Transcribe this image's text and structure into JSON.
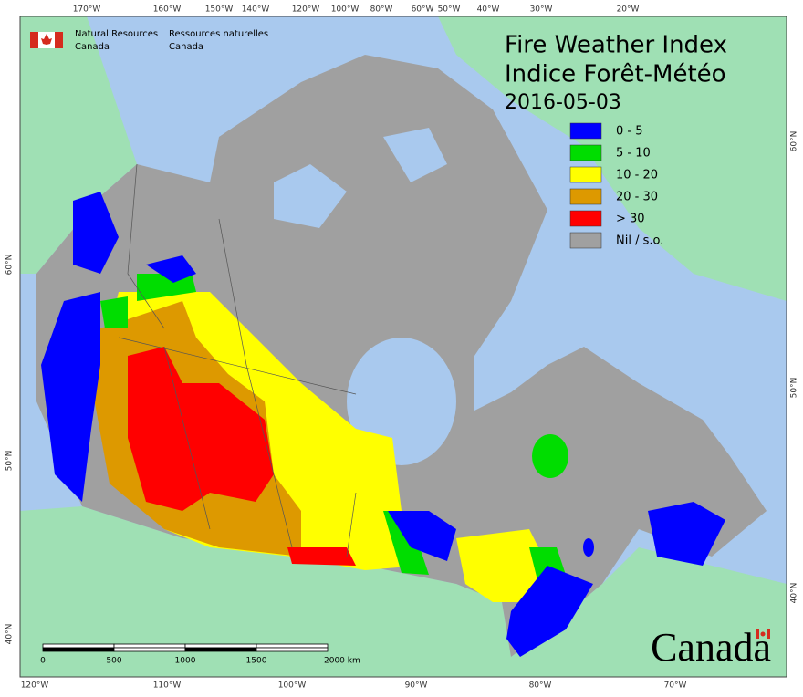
{
  "header": {
    "agency_en": "Natural Resources",
    "agency_en_2": "Canada",
    "agency_fr": "Ressources naturelles",
    "agency_fr_2": "Canada"
  },
  "title": {
    "line1": "Fire Weather Index",
    "line2": "Indice Forêt-Météo",
    "date": "2016-05-03"
  },
  "legend": [
    {
      "label": "0 - 5",
      "color": "#0000ff"
    },
    {
      "label": "5 - 10",
      "color": "#00dd00"
    },
    {
      "label": "10 - 20",
      "color": "#ffff00"
    },
    {
      "label": "20 - 30",
      "color": "#dd9900"
    },
    {
      "label": "> 30",
      "color": "#ff0000"
    },
    {
      "label": "Nil / s.o.",
      "color": "#a0a0a0"
    }
  ],
  "graticule": {
    "top": [
      "170°W",
      "160°W",
      "150°W",
      "140°W",
      "120°W",
      "100°W",
      "80°W",
      "60°W",
      "50°W",
      "40°W",
      "30°W",
      "20°W"
    ],
    "bottom": [
      "120°W",
      "110°W",
      "100°W",
      "90°W",
      "80°W",
      "70°W"
    ],
    "left": [
      "60°N",
      "50°N",
      "40°N"
    ],
    "right": [
      "60°N",
      "50°N",
      "40°N"
    ]
  },
  "scale_bar": {
    "labels": [
      "0",
      "500",
      "1000",
      "1500",
      "2000 km"
    ]
  },
  "wordmark": "Canada"
}
